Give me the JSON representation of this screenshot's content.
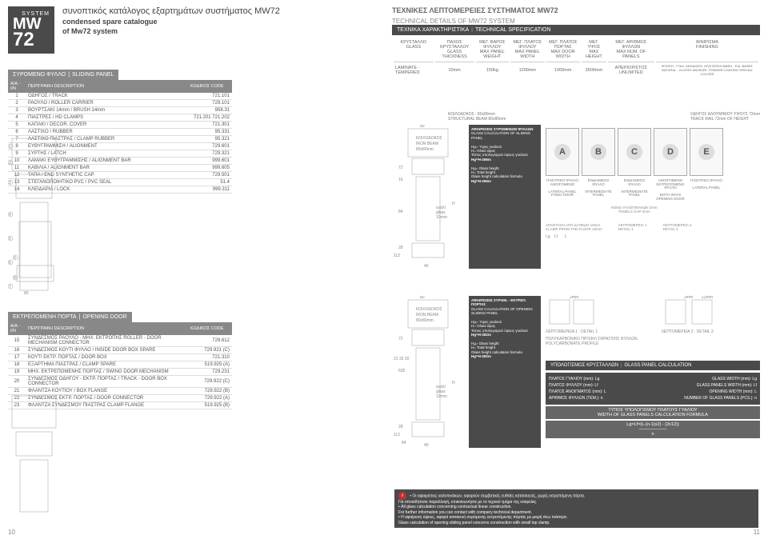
{
  "header": {
    "system": "SYSTEM",
    "mw": "MW",
    "num": "72",
    "title_gr": "συνοπτικός κατάλογος εξαρτημάτων συστήματος MW72",
    "title_en1": "condensed spare catalogue",
    "title_en2": "of Mw72 system",
    "tech_gr": "ΤΕΧΝΙΚΕΣ ΛΕΠΤΟΜΕΡΕΙΕΣ ΣΥΣΤΗΜΑΤΟΣ MW72",
    "tech_en": "TECHNICAL DETAILS OF MW72 SYSTEM",
    "spec_gr": "ΤΕΧΝΙΚΑ ΧΑΡΑΚΤΗΡΙΣΤΙΚΑ",
    "spec_en": "TECHNICAL SPECIFICATION"
  },
  "spec": {
    "cols": [
      {
        "gr": "ΚΡΥΣΤΑΛΛΟ",
        "en": "GLASS"
      },
      {
        "gr": "ΠΑΧΟΣ ΚΡΥΣΤΑΛΛΟΥ",
        "en": "GLASS THICKNESS"
      },
      {
        "gr": "ΜΕΓ. ΒΑΡΟΣ ΦΥΛΛΟΥ",
        "en": "MAX PANEL WEIGHT"
      },
      {
        "gr": "ΜΕΓ. ΠΛΑΤΟΣ ΦΥΛΛΟΥ",
        "en": "MAX PANEL WIDTH"
      },
      {
        "gr": "ΜΕΓ. ΠΛΑΤΟΣ ΠΟΡΤΑΣ",
        "en": "MAX DOOR WIDTH"
      },
      {
        "gr": "ΜΕΓ. ΥΨΟΣ",
        "en": "MAX HEIGHT"
      },
      {
        "gr": "ΜΕΓ. ΑΡΙΘΜΟΣ ΦΥΛΛΩΝ",
        "en": "MAX NUM. OF PANELS"
      },
      {
        "gr": "ΦΙΝΙΡΙΣΜΑ",
        "en": "FINISHING"
      }
    ],
    "row": {
      "c0": "LAMINATE - TEMPERED",
      "c1": "10mm",
      "c2": "150kg",
      "c3": "1200mm",
      "c4": "1000mm",
      "c5": "3500mm",
      "c6": "ΑΠΕΡΙΟΡΙΣΤΟΣ UNLIMITED",
      "c7": "ΦΥΣΙΚΗ - ΓΥΑΛ. ΑΝΟΔΙΩΣΗ, ΗΛ/ΣΤΑΤΙΚΗ ΒΑΦΗ - ΕΙΔ. ΒΑΦΕΣ NATURAL - GLOSSY ANODIZE, POWDER COATING SPECIAL COLORS"
    }
  },
  "sliding": {
    "title_gr": "ΣΥΡΟΜΕΝΟ ΦΥΛΛΟ",
    "title_en": "SLIDING PANEL",
    "th": {
      "a": "Α/Α - Ι/Ν",
      "b": "ΠΕΡΙΓΡΑΦΗ   DESCRIPTION",
      "c": "ΚΩΔΙΚΟΣ   CODE"
    },
    "rows": [
      {
        "n": "1",
        "d": "ΟΔΗΓΟΣ / TRACK",
        "c": "721.101"
      },
      {
        "n": "2",
        "d": "ΡΑΟΥΛΟ / ROLLER CARRIER",
        "c": "729.101"
      },
      {
        "n": "3",
        "d": "ΒΟΥΡΤΣΑΚΙ 14mm / BRUSH 14mm",
        "c": "958.31"
      },
      {
        "n": "4",
        "d": "ΠΙΑΣΤΡΕΣ / HD CLAMPS",
        "c": "721.201 721.202"
      },
      {
        "n": "5",
        "d": "ΚΑΠΑΚΙ / DECOR. COVER",
        "c": "721.301"
      },
      {
        "n": "6",
        "d": "ΛΑΣΤΙΧΟ / RUBBER",
        "c": "95.331"
      },
      {
        "n": "7",
        "d": "ΛΑΣΤΙΧΟ ΠΙΑΣΤΡΑΣ / CLAMP RUBBER",
        "c": "95.321"
      },
      {
        "n": "8",
        "d": "ΕΥΘΥΓΡΑΜΜΙΣΗ / ALIGNMENT",
        "c": "729.601"
      },
      {
        "n": "9",
        "d": "ΣΥΡΤΗΣ / LATCH",
        "c": "729.321"
      },
      {
        "n": "10",
        "d": "ΛΑΜΑΚΙ ΕΥΘΥΓΡΑΜΜΙΣΗΣ / ALIGNMENT BAR",
        "c": "999.601"
      },
      {
        "n": "11",
        "d": "ΚΑΒΙΛΙΑ / ALIGNMENT BAR",
        "c": "999.605"
      },
      {
        "n": "12",
        "d": "ΤΑΠΑ / END SYNTHETIC CAP",
        "c": "729.501"
      },
      {
        "n": "13",
        "d": "ΣΤΕΓΑΝΟΠΟΙΗΤΙΚΟ PVC / PVC SEAL",
        "c": "51.4"
      },
      {
        "n": "14",
        "d": "ΚΛΕΙΔΑΡΙΑ / LOCK",
        "c": "999.311"
      }
    ]
  },
  "opening": {
    "title_gr": "ΕΚΤΡΕΠΟΜΕΝΗ ΠΟΡΤΑ",
    "title_en": "OPENING DOOR",
    "th": {
      "a": "Α/Α - Ι/Ν",
      "b": "ΠΕΡΙΓΡΑΦΗ   DESCRIPTION",
      "c": "ΚΩΔΙΚΟΣ   CODE"
    },
    "rows": [
      {
        "n": "15",
        "d": "ΣΥΝΔΕΣΜΟΣ ΡΑΟΥΛΟ - ΜΗΧ. ΕΚΤΡΟΠΗΣ ROLLER - DOOR MECHANISM CONNECTOR",
        "c": "729.612"
      },
      {
        "n": "16",
        "d": "ΣΥΝΔΕΣΜΟΣ ΚΟΥΤΙ ΦΥΛΛΟ / INSIDE DOOR BOX SPARE",
        "c": "729.921 (C)"
      },
      {
        "n": "17",
        "d": "ΚΟΥΤΙ ΕΚΤΡ. ΠΟΡΤΑΣ / DOOR BOX",
        "c": "721.310"
      },
      {
        "n": "18",
        "d": "ΕΞΑΡΤΗΜΑ ΠΙΑΣΤΡΑΣ / CLAMP SPARE",
        "c": "519.925 (A)"
      },
      {
        "n": "19",
        "d": "ΜΗΧ. ΕΚΤΡΕΠΟΜΕΝΗΣ ΠΟΡΤΑΣ / SWING DOOR MECHANISM",
        "c": "729.231"
      },
      {
        "n": "20",
        "d": "ΣΥΝΔΕΣΜΟΣ ΟΔΗΓΟΥ - ΕΚΤΡ. ΠΟΡΤΑΣ / TRACK - DOOR BOX CONNECTOR",
        "c": "729.922 (C)"
      },
      {
        "n": "21",
        "d": "ΦΛΑΝΤΖΑ ΚΟΥΤΙΟΥ / BOX FLANGE",
        "c": "729.922 (B)"
      },
      {
        "n": "22",
        "d": "ΣΥΝΔΕΣΜΟΣ ΕΚΤΡ. ΠΟΡΤΑΣ / DOOR CONNECTOR",
        "c": "729.922 (A)"
      },
      {
        "n": "23",
        "d": "ΦΛΑΝΤΖΑ ΣΥΝΔΕΣΜΟΥ ΠΙΑΣΤΡΑΣ CLAMP FLANGE",
        "c": "519.925 (B)"
      }
    ]
  },
  "beam": {
    "gr": "ΚΟΙΛΟΔΟΚΟΣ",
    "en": "IRON BEAM",
    "dim": "80x80mm"
  },
  "beam2": {
    "gr": "ΚΟΙΛΟΔΟΚΟΣ : 80x80mm",
    "en": "STRUCTURAL BEAM 80x80mm"
  },
  "rail": {
    "gr": "ΟΔΗΓΟΣ ΑΛΟΥΜΙΝΙΟΥ ΥΨΟΥΣ 72mm",
    "en": "TRACK RAIL 72mm OF HEIGHT"
  },
  "afair1": {
    "t": "ΑΦΑΙΡΕΣΕΙΣ ΣΥΡΟΜΕΝΩΝ ΦΥΛΛΩΝ",
    "e": "GLASS CALCULATION OF SLIDING PANEL",
    "l1": "Hg= Ύψος γυαλιού",
    "l2": "H= Ολικό ύψος",
    "l3": "Τύπος υπολογισμού ύψους γυαλιού",
    "l4": "Hg=H-266m",
    "l5": "Hg= Glass height",
    "l6": "H= Total height",
    "l7": "Glass height calculation formula",
    "l8": "Hg=H-266m"
  },
  "afair2": {
    "t": "ΑΦΑΙΡΕΣΕΙΣ ΣΥΡΟΜ. - ΕΚΤΡΕΠ. ΠΟΡΤΑΣ",
    "e": "GLASS CALCULATION OF OPENING SLIDING PANEL",
    "l4": "Hg=H-282m",
    "l8": "Hg=H-282m"
  },
  "panels": [
    {
      "gr": "ΠΛΕΥΡΙΚΟ ΦΥΛΛΟ ΑΝΟΙΓΟΜΕΝΟ",
      "en": "LATERAL PANEL FIXED DOOR",
      "l": "A"
    },
    {
      "gr": "ΕΝΔΙΑΜΕΣΟ ΦΥΛΛΟ",
      "en": "INTERMEDIATE PANEL",
      "l": "B"
    },
    {
      "gr": "ΕΝΔΙΑΜΕΣΟ ΦΥΛΛΟ",
      "en": "INTERMEDIATE PANEL",
      "l": "C"
    },
    {
      "gr": "ΑΝΟΙΓΟΜΕΝΟ ΕΚΤΡΕΠΟΜΕΝΟ ΦΥΛΛΟ",
      "en": "BOTH WAYS OPENING DOOR",
      "l": "D"
    },
    {
      "gr": "ΠΛΕΥΡΙΚΟ ΦΥΛΛΟ",
      "en": "LATERAL PANEL",
      "l": "E"
    }
  ],
  "gap": {
    "gr": "ΚΕΝΟ ΥΑΛΟΠΙΝΑΚΩΝ 2mm",
    "en": "PANELS GAP 2mm"
  },
  "floor": {
    "gr": "ΑΠΟΣΤΑΣΗ ΑΠΟ ΔΑΠΕΔΟ 10mm",
    "en": "CLAMP FROM THE FLOOR 10mm"
  },
  "det1": {
    "gr": "ΛΕΠΤΟΜΕΡΕΙΑ 1",
    "en": "DETAIL 1"
  },
  "det2": {
    "gr": "ΛΕΠΤΟΜΕΡΕΙΑ 2",
    "en": "DETAIL 2"
  },
  "det1b": {
    "gr": "ΛΕΠΤΟΜΕΡΕΙΑ 1 : DETAIL 1"
  },
  "det2b": {
    "gr": "ΛΕΠΤΟΜΕΡΕΙΑ 2 : DETAIL 2"
  },
  "poly": {
    "gr": "ΠΟΛΥΚΑΡΒΟΝΙΚΟ ΠΡΟΦΙΛ ΣΦΡΑΓΙΣΗΣ ΦΥΛΛΩΝ",
    "en": "POLYCARBONATE PROFILE"
  },
  "glass": {
    "gr": "γυαλί",
    "en": "glass",
    "t": "10mm"
  },
  "dims": {
    "d80": "80",
    "d72": "72",
    "d16": "16",
    "d84": "84",
    "d28": "28",
    "d112": "112",
    "d40": "40",
    "d8": "8",
    "d2": "2mm",
    "d12": "12mm",
    "dH": "H",
    "dLg": "Lg",
    "dLf": "Lf",
    "dL": "L",
    "d535": "535",
    "d2132": "21   32   20"
  },
  "calc": {
    "title_gr": "ΥΠΟΛΟΓΙΣΜΟΣ ΚΡΥΣΤΑΛΛΩΝ",
    "title_en": "GLASS PANEL CALCULATION",
    "rows": [
      {
        "g": "ΠΛΑΤΟΣ ΓΥΑΛΙΟΥ (mm): Lg",
        "e": "GLASS WIDTH (mm): Lg"
      },
      {
        "g": "ΠΛΑΤΟΣ ΦΥΛΛΟΥ (mm): Lf",
        "e": "GLASS PANELS WIDTH (mm): Lf"
      },
      {
        "g": "ΠΛΑΤΟΣ ΑΝΟΙΓΜΑΤΟΣ (mm): L",
        "e": "OPENING WIDTH (mm): L"
      },
      {
        "g": "ΑΡΙΘΜΟΣ ΦΥΛΛΩΝ (ΤΕΜ.): n",
        "e": "NUMBER OF GLASS PANELS (PCS.): n"
      }
    ],
    "formula_title_gr": "ΤΥΠΟΣ ΥΠΟΛΟΓΙΣΜΟΥ ΠΛΑΤΟΥΣ ΓΥΑΛΙΟΥ",
    "formula_title_en": "WIDTH OF GLASS PANELS CALCULATION FORMULA",
    "formula": "Lg=Lf=(L-(n-1)x2) - (2x12))",
    "formula2": "n"
  },
  "notes": {
    "l1": "• Οι αφαιρέσεις υαλοπινάκων, αφορούν συμβατικές ευθείες κατασκευές, χωρίς εκτρεπόμενη πόρτα.",
    "l2": "  Για οποιαδήποτε παραλλαγή, επικοινωνήστε με το τεχνικό τμήμα της εταιρείας.",
    "l3": "• All glass calculation concerning contractual linear construction.",
    "l4": "  For further information you can contact with company technical department.",
    "l5": "• Η αφαίρεση ύψους, αφορά κατακευή συρόμενης εκτρεπόμενης πόρτας με μικρή άνω πιάστρα.",
    "l6": "  Glass calculation of opening sliding panel concerns construction with small top clamp."
  },
  "pages": {
    "l": "10",
    "r": "11"
  }
}
